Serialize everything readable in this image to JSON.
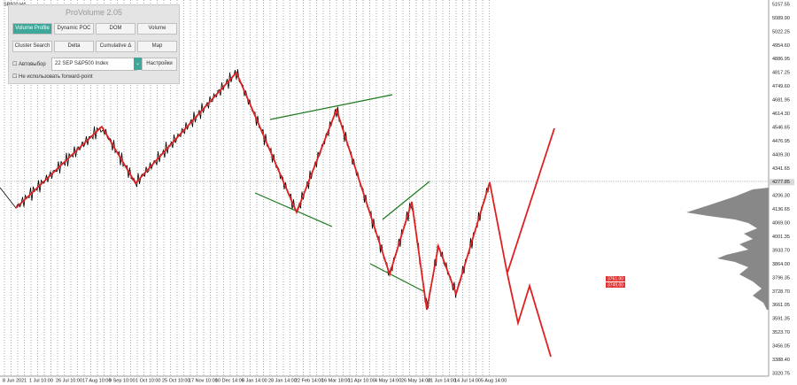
{
  "symbol": "SP500,H4",
  "panel": {
    "title": "ProVolume 2.05",
    "buttons": [
      "Volume Profile",
      "Dynamic POC",
      "DOM",
      "Volume",
      "Cluster Search",
      "Delta",
      "Cumulative Δ",
      "Map"
    ],
    "auto_select": "Автовыбор",
    "instrument": "22 SEP S&P500 Index",
    "settings": "Настройки",
    "forward_point": "Не использовать forward-point"
  },
  "price_axis": [
    "5157.55",
    "5089.90",
    "5022.25",
    "4954.60",
    "4886.95",
    "4817.25",
    "4749.60",
    "4681.95",
    "4614.30",
    "4546.65",
    "4476.95",
    "4409.30",
    "4341.65",
    "4277.85",
    "4206.30",
    "4136.65",
    "4069.00",
    "4001.35",
    "3933.70",
    "3864.00",
    "3796.35",
    "3728.70",
    "3661.05",
    "3591.35",
    "3523.70",
    "3456.05",
    "3388.40",
    "3320.75"
  ],
  "time_axis": [
    "8 Jun 2021",
    "1 Jul 10:00",
    "26 Jul 10:00",
    "17 Aug 10:00",
    "9 Sep 10:00",
    "1 Oct 10:00",
    "25 Oct 10:00",
    "17 Nov 10:00",
    "10 Dec 14:00",
    "5 Jan 14:00",
    "28 Jan 14:00",
    "22 Feb 14:00",
    "16 Mar 18:00",
    "11 Apr 10:00",
    "4 May 14:00",
    "26 May 14:00",
    "21 Jun 14:00",
    "14 Jul 14:00",
    "5 Aug 14:00"
  ],
  "level_labels": [
    "3761.00",
    "3749.00"
  ]
}
